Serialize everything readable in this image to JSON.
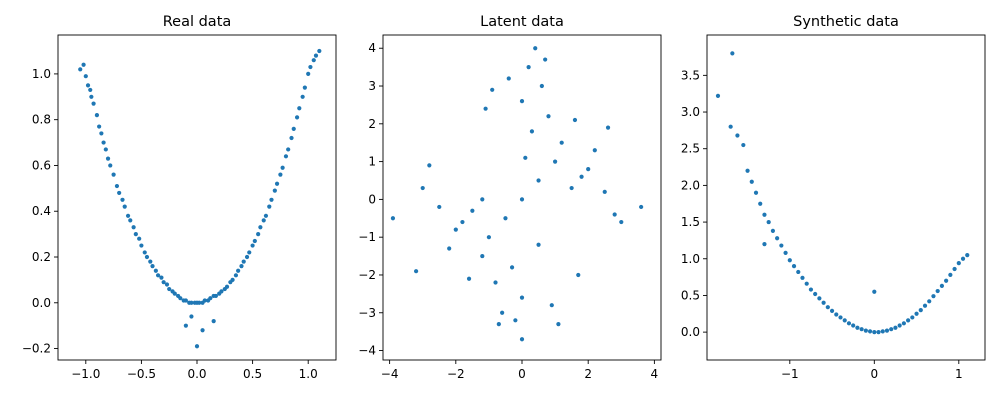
{
  "chart_data": [
    {
      "type": "scatter",
      "title": "Real data",
      "xlabel": "",
      "ylabel": "",
      "xlim": [
        -1.25,
        1.25
      ],
      "ylim": [
        -0.25,
        1.17
      ],
      "xticks": [
        -1.0,
        -0.5,
        0.0,
        0.5,
        1.0
      ],
      "xtick_labels": [
        "−1.0",
        "−0.5",
        "0.0",
        "0.5",
        "1.0"
      ],
      "yticks": [
        -0.2,
        0.0,
        0.2,
        0.4,
        0.6,
        0.8,
        1.0
      ],
      "ytick_labels": [
        "−0.2",
        "0.0",
        "0.2",
        "0.4",
        "0.6",
        "0.8",
        "1.0"
      ],
      "grid": false,
      "color": "#1f77b4",
      "x": [
        -1.05,
        -1.02,
        -1.0,
        -0.98,
        -0.96,
        -0.95,
        -0.93,
        -0.9,
        -0.88,
        -0.86,
        -0.84,
        -0.82,
        -0.8,
        -0.78,
        -0.75,
        -0.72,
        -0.7,
        -0.67,
        -0.65,
        -0.62,
        -0.6,
        -0.57,
        -0.55,
        -0.52,
        -0.5,
        -0.47,
        -0.45,
        -0.42,
        -0.4,
        -0.37,
        -0.35,
        -0.32,
        -0.3,
        -0.27,
        -0.25,
        -0.22,
        -0.2,
        -0.17,
        -0.15,
        -0.12,
        -0.1,
        -0.07,
        -0.05,
        -0.02,
        0.0,
        0.02,
        0.05,
        0.07,
        0.1,
        0.12,
        0.15,
        0.17,
        0.2,
        0.22,
        0.25,
        0.27,
        0.3,
        0.32,
        0.35,
        0.37,
        0.4,
        0.42,
        0.45,
        0.47,
        0.5,
        0.52,
        0.55,
        0.57,
        0.6,
        0.62,
        0.65,
        0.67,
        0.7,
        0.72,
        0.75,
        0.77,
        0.8,
        0.82,
        0.85,
        0.87,
        0.9,
        0.92,
        0.95,
        0.97,
        1.0,
        1.02,
        1.05,
        1.07,
        1.1,
        -0.1,
        0.0,
        0.05,
        -0.05,
        0.15
      ],
      "y": [
        1.02,
        1.04,
        0.99,
        0.95,
        0.93,
        0.9,
        0.87,
        0.82,
        0.77,
        0.74,
        0.7,
        0.67,
        0.63,
        0.6,
        0.56,
        0.51,
        0.48,
        0.45,
        0.42,
        0.38,
        0.36,
        0.33,
        0.3,
        0.28,
        0.25,
        0.22,
        0.2,
        0.18,
        0.16,
        0.14,
        0.12,
        0.11,
        0.09,
        0.08,
        0.06,
        0.05,
        0.04,
        0.03,
        0.02,
        0.01,
        0.01,
        0.0,
        0.0,
        0.0,
        0.0,
        0.0,
        0.0,
        0.01,
        0.01,
        0.02,
        0.03,
        0.03,
        0.04,
        0.05,
        0.06,
        0.07,
        0.09,
        0.1,
        0.12,
        0.14,
        0.16,
        0.18,
        0.2,
        0.22,
        0.25,
        0.27,
        0.3,
        0.33,
        0.36,
        0.38,
        0.42,
        0.45,
        0.49,
        0.52,
        0.56,
        0.59,
        0.64,
        0.67,
        0.72,
        0.76,
        0.81,
        0.85,
        0.9,
        0.94,
        1.0,
        1.03,
        1.06,
        1.08,
        1.1,
        -0.1,
        -0.19,
        -0.12,
        -0.06,
        -0.08
      ]
    },
    {
      "type": "scatter",
      "title": "Latent data",
      "xlabel": "",
      "ylabel": "",
      "xlim": [
        -4.2,
        4.2
      ],
      "ylim": [
        -4.25,
        4.35
      ],
      "xticks": [
        -4,
        -2,
        0,
        2,
        4
      ],
      "xtick_labels": [
        "−4",
        "−2",
        "0",
        "2",
        "4"
      ],
      "yticks": [
        -4,
        -3,
        -2,
        -1,
        0,
        1,
        2,
        3,
        4
      ],
      "ytick_labels": [
        "−4",
        "−3",
        "−2",
        "−1",
        "0",
        "1",
        "2",
        "3",
        "4"
      ],
      "grid": false,
      "color": "#1f77b4",
      "x": [
        0.0,
        0.5,
        -0.5,
        1.0,
        -1.0,
        1.5,
        -1.5,
        2.0,
        -2.0,
        0.3,
        -0.3,
        0.8,
        -0.8,
        1.2,
        -1.2,
        0.0,
        0.0,
        0.6,
        -0.6,
        1.8,
        -1.8,
        2.5,
        -2.5,
        3.0,
        -3.0,
        3.6,
        -3.9,
        0.2,
        -0.2,
        0.9,
        -0.9,
        1.6,
        -1.6,
        2.2,
        -2.2,
        2.8,
        -2.8,
        0.0,
        0.4,
        -0.4,
        1.1,
        -1.1,
        0.7,
        -0.7,
        0.1,
        -1.2,
        0.5,
        2.6,
        -3.2,
        1.7
      ],
      "y": [
        0.0,
        0.5,
        -0.5,
        1.0,
        -1.0,
        0.3,
        -0.3,
        0.8,
        -0.8,
        1.8,
        -1.8,
        2.2,
        -2.2,
        1.5,
        -1.5,
        2.6,
        -2.6,
        3.0,
        -3.0,
        0.6,
        -0.6,
        0.2,
        -0.2,
        -0.6,
        0.3,
        -0.2,
        -0.5,
        3.5,
        -3.2,
        -2.8,
        2.9,
        2.1,
        -2.1,
        1.3,
        -1.3,
        -0.4,
        0.9,
        -3.7,
        4.0,
        3.2,
        -3.3,
        2.4,
        3.7,
        -3.3,
        1.1,
        0.0,
        -1.2,
        1.9,
        -1.9,
        -2.0
      ]
    },
    {
      "type": "scatter",
      "title": "Synthetic data",
      "xlabel": "",
      "ylabel": "",
      "xlim": [
        -1.98,
        1.31
      ],
      "ylim": [
        -0.38,
        4.05
      ],
      "xticks": [
        -1,
        0,
        1
      ],
      "xtick_labels": [
        "−1",
        "0",
        "1"
      ],
      "yticks": [
        0.0,
        0.5,
        1.0,
        1.5,
        2.0,
        2.5,
        3.0,
        3.5
      ],
      "ytick_labels": [
        "0.0",
        "0.5",
        "1.0",
        "1.5",
        "2.0",
        "2.5",
        "3.0",
        "3.5"
      ],
      "grid": false,
      "color": "#1f77b4",
      "x": [
        -1.85,
        -1.7,
        -1.62,
        -1.55,
        -1.5,
        -1.45,
        -1.4,
        -1.35,
        -1.3,
        -1.25,
        -1.2,
        -1.15,
        -1.1,
        -1.05,
        -1.0,
        -0.95,
        -0.9,
        -0.85,
        -0.8,
        -0.75,
        -0.7,
        -0.65,
        -0.6,
        -0.55,
        -0.5,
        -0.45,
        -0.4,
        -0.35,
        -0.3,
        -0.25,
        -0.2,
        -0.15,
        -0.1,
        -0.05,
        0.0,
        0.05,
        0.1,
        0.15,
        0.2,
        0.25,
        0.3,
        0.35,
        0.4,
        0.45,
        0.5,
        0.55,
        0.6,
        0.65,
        0.7,
        0.75,
        0.8,
        0.85,
        0.9,
        0.95,
        1.0,
        1.05,
        1.1,
        -1.68,
        -1.3,
        0.0
      ],
      "y": [
        3.22,
        2.8,
        2.68,
        2.55,
        2.2,
        2.05,
        1.9,
        1.75,
        1.6,
        1.5,
        1.38,
        1.28,
        1.18,
        1.08,
        0.98,
        0.9,
        0.82,
        0.74,
        0.66,
        0.58,
        0.52,
        0.46,
        0.4,
        0.34,
        0.29,
        0.24,
        0.2,
        0.16,
        0.12,
        0.09,
        0.06,
        0.04,
        0.02,
        0.01,
        0.0,
        0.0,
        0.01,
        0.02,
        0.04,
        0.06,
        0.09,
        0.12,
        0.16,
        0.2,
        0.25,
        0.3,
        0.36,
        0.42,
        0.49,
        0.56,
        0.63,
        0.7,
        0.78,
        0.86,
        0.94,
        1.0,
        1.05,
        3.8,
        1.2,
        0.55
      ]
    }
  ]
}
